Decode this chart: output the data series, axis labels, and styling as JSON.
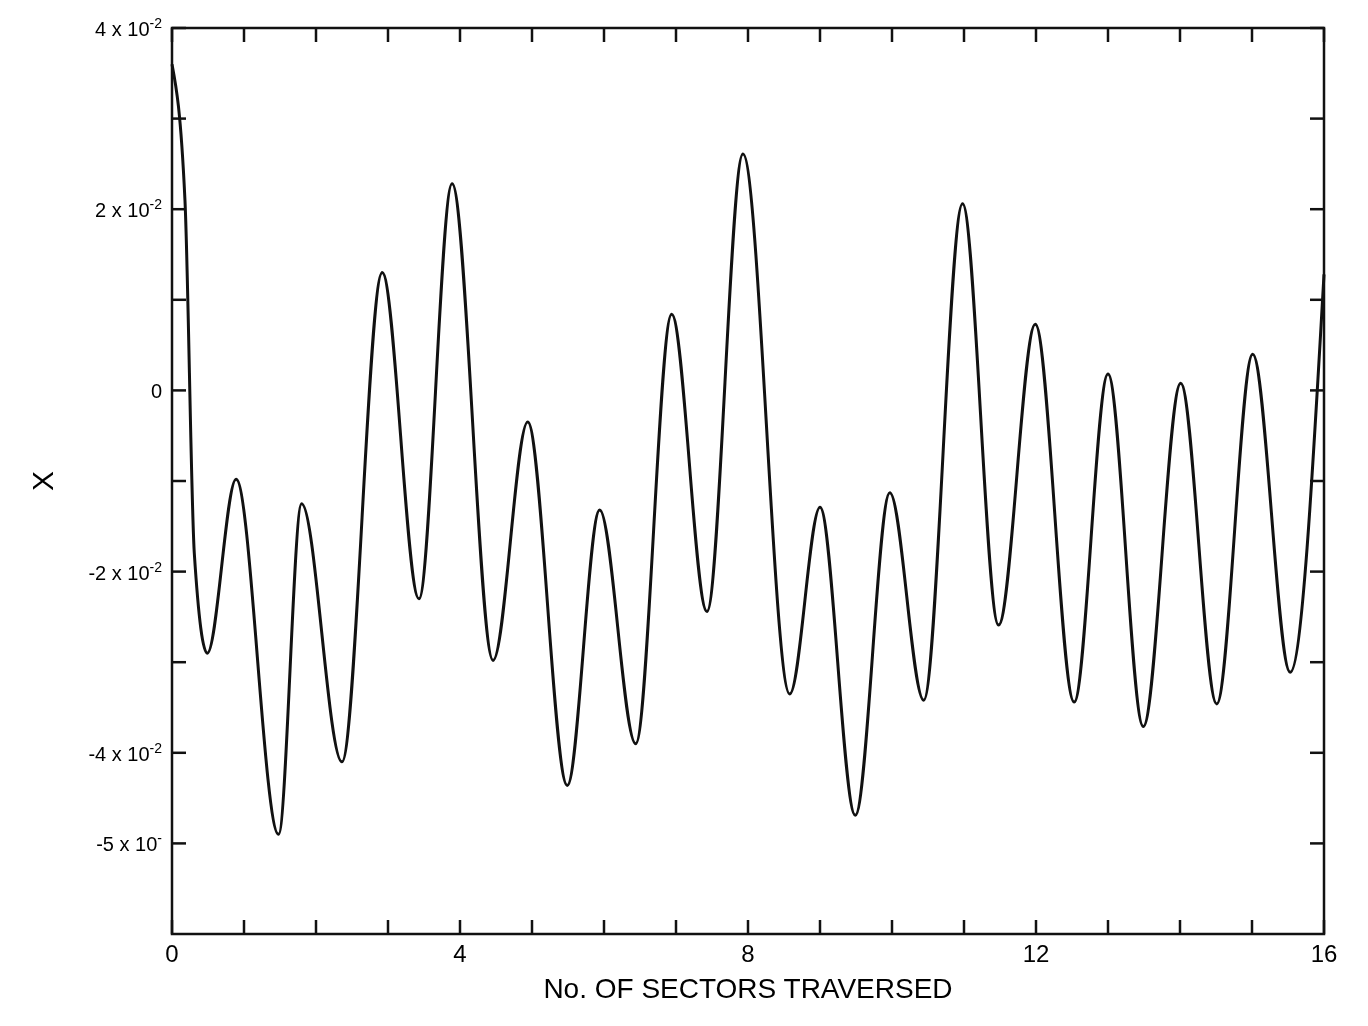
{
  "chart_data": {
    "type": "line",
    "xlabel": "No. OF SECTORS TRAVERSED",
    "ylabel": "X",
    "x": [
      0,
      0.18,
      0.31,
      0.49,
      0.89,
      1.48,
      1.8,
      2.36,
      2.92,
      3.43,
      3.89,
      4.46,
      4.94,
      5.49,
      5.94,
      6.44,
      6.94,
      7.43,
      7.93,
      8.58,
      9.0,
      9.49,
      9.97,
      10.44,
      10.98,
      11.48,
      11.99,
      12.53,
      13.0,
      13.49,
      14.01,
      14.51,
      15.01,
      15.53,
      16
    ],
    "series": [
      {
        "color": "#111111",
        "values": [
          0.036,
          0.021,
          -0.018,
          -0.029,
          -0.0098,
          -0.049,
          -0.0125,
          -0.041,
          0.013,
          -0.023,
          0.0228,
          -0.0298,
          -0.0035,
          -0.0436,
          -0.0132,
          -0.039,
          0.0084,
          -0.0244,
          0.0261,
          -0.0335,
          -0.0129,
          -0.0469,
          -0.0113,
          -0.0342,
          0.0206,
          -0.0259,
          0.0073,
          -0.0344,
          0.0018,
          -0.0371,
          0.0008,
          -0.0346,
          0.004,
          -0.0311,
          0.0128
        ]
      }
    ],
    "xlim": [
      0,
      16
    ],
    "xticks": [
      0,
      {
        "value": 1,
        "label": null
      },
      {
        "value": 2,
        "label": null
      },
      {
        "value": 3,
        "label": null
      },
      4,
      {
        "value": 5,
        "label": null
      },
      {
        "value": 6,
        "label": null
      },
      {
        "value": 7,
        "label": null
      },
      8,
      {
        "value": 9,
        "label": null
      },
      {
        "value": 10,
        "label": null
      },
      {
        "value": 11,
        "label": null
      },
      12,
      {
        "value": 13,
        "label": null
      },
      {
        "value": 14,
        "label": null
      },
      {
        "value": 15,
        "label": null
      },
      16
    ],
    "ylim": [
      -0.06,
      0.04
    ],
    "yticks": [
      {
        "value": -0.05,
        "label": "-5 x 10$^{-}$"
      },
      {
        "value": -0.04,
        "label": "-4 x 10$^{-2}$"
      },
      {
        "value": -0.03,
        "label": null
      },
      {
        "value": -0.02,
        "label": "-2 x 10$^{-2}$"
      },
      {
        "value": -0.01,
        "label": null
      },
      0,
      {
        "value": 0.01,
        "label": null
      },
      {
        "value": 0.02,
        "label": "2 x 10$^{-2}$"
      },
      {
        "value": 0.03,
        "label": null
      },
      {
        "value": 0.04,
        "label": "4 x 10$^{-2}$"
      }
    ],
    "grid": false,
    "marker": "none",
    "line_style": "solid"
  }
}
